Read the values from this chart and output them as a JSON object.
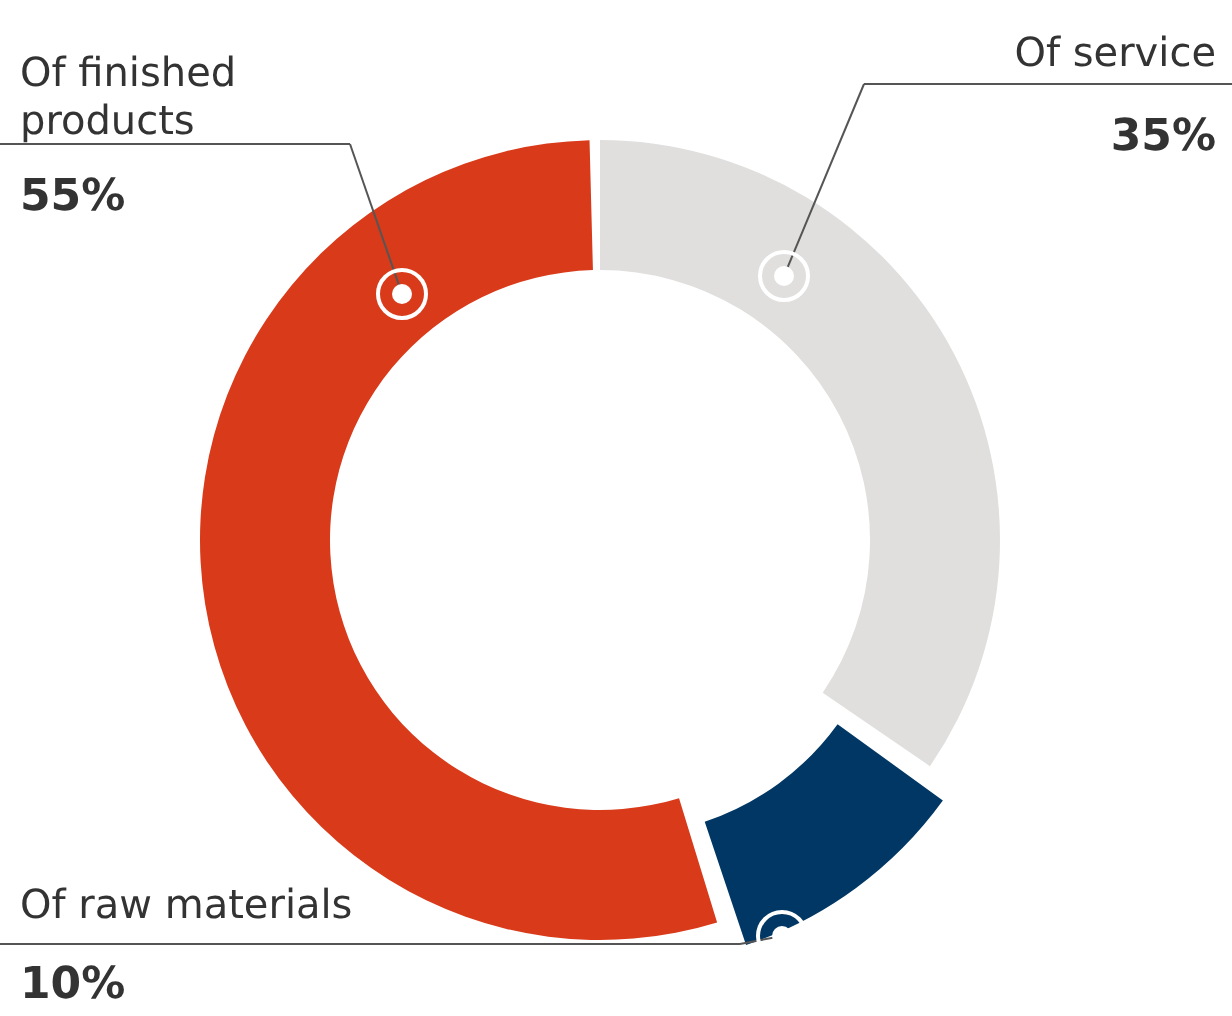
{
  "chart_data": {
    "type": "donut",
    "categories": [
      "Of service",
      "Of raw materials",
      "Of finished products"
    ],
    "values": [
      35,
      10,
      55
    ],
    "value_labels": [
      "35%",
      "10%",
      "55%"
    ],
    "colors": [
      "#e0dfde",
      "#003764",
      "#d93a1a"
    ],
    "legend": false
  }
}
